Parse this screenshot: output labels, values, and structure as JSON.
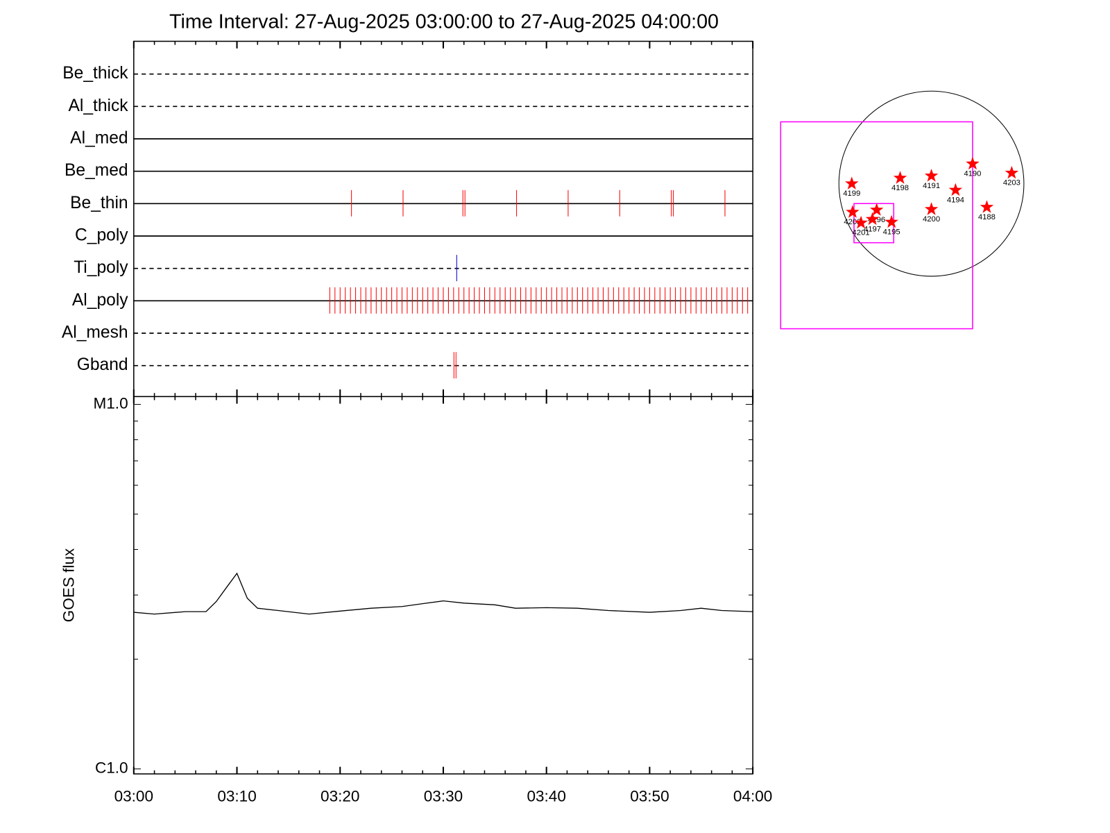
{
  "chart_data": [
    {
      "type": "timeline",
      "title": "Time Interval: 27-Aug-2025 03:00:00 to 27-Aug-2025 04:00:00",
      "xlim": [
        "03:00",
        "04:00"
      ],
      "xticks": [
        "03:00",
        "03:10",
        "03:20",
        "03:30",
        "03:40",
        "03:50",
        "04:00"
      ],
      "xminorticks": [
        "03:02",
        "03:04",
        "03:06",
        "03:08",
        "03:12",
        "03:14",
        "03:16",
        "03:18",
        "03:22",
        "03:24",
        "03:26",
        "03:28",
        "03:32",
        "03:34",
        "03:36",
        "03:38",
        "03:42",
        "03:44",
        "03:46",
        "03:48",
        "03:52",
        "03:54",
        "03:56",
        "03:58"
      ],
      "filters": [
        {
          "name": "Be_thick",
          "line": "dashed",
          "color": "#ff0000",
          "times": []
        },
        {
          "name": "Al_thick",
          "line": "dashed",
          "color": "#ff0000",
          "times": []
        },
        {
          "name": "Al_med",
          "line": "solid",
          "color": "#ff0000",
          "times": []
        },
        {
          "name": "Be_med",
          "line": "solid",
          "color": "#ff0000",
          "times": []
        },
        {
          "name": "Be_thin",
          "line": "solid",
          "color": "#ff0000",
          "times": [
            "03:21:06",
            "03:26:06",
            "03:31:54",
            "03:32:06",
            "03:37:06",
            "03:42:06",
            "03:47:06",
            "03:52:06",
            "03:52:18",
            "03:57:18"
          ]
        },
        {
          "name": "C_poly",
          "line": "solid",
          "color": "#ff0000",
          "times": []
        },
        {
          "name": "Ti_poly",
          "line": "dashed",
          "color": "#0000cc",
          "times": [
            "03:31:18"
          ]
        },
        {
          "name": "Al_poly",
          "line": "solid",
          "color": "#ff0000",
          "times": [
            "03:19:00",
            "03:19:30",
            "03:20:00",
            "03:20:30",
            "03:21:00",
            "03:21:30",
            "03:22:00",
            "03:22:30",
            "03:23:00",
            "03:23:30",
            "03:24:00",
            "03:24:30",
            "03:25:00",
            "03:25:30",
            "03:26:00",
            "03:26:30",
            "03:27:00",
            "03:27:30",
            "03:28:00",
            "03:28:30",
            "03:29:00",
            "03:29:30",
            "03:30:00",
            "03:30:30",
            "03:31:00",
            "03:31:30",
            "03:32:00",
            "03:32:30",
            "03:33:00",
            "03:33:30",
            "03:34:00",
            "03:34:30",
            "03:35:00",
            "03:35:30",
            "03:36:00",
            "03:36:30",
            "03:37:00",
            "03:37:30",
            "03:38:00",
            "03:38:30",
            "03:39:00",
            "03:39:30",
            "03:40:00",
            "03:40:30",
            "03:41:00",
            "03:41:30",
            "03:42:00",
            "03:42:30",
            "03:43:00",
            "03:43:30",
            "03:44:00",
            "03:44:30",
            "03:45:00",
            "03:45:30",
            "03:46:00",
            "03:46:30",
            "03:47:00",
            "03:47:30",
            "03:48:00",
            "03:48:30",
            "03:49:00",
            "03:49:30",
            "03:50:00",
            "03:50:30",
            "03:51:00",
            "03:51:30",
            "03:52:00",
            "03:52:30",
            "03:53:00",
            "03:53:30",
            "03:54:00",
            "03:54:30",
            "03:55:00",
            "03:55:30",
            "03:56:00",
            "03:56:30",
            "03:57:00",
            "03:57:30",
            "03:58:00",
            "03:58:30",
            "03:59:00",
            "03:59:30"
          ]
        },
        {
          "name": "Al_mesh",
          "line": "dashed",
          "color": "#ff0000",
          "times": []
        },
        {
          "name": "Gband",
          "line": "dashed",
          "color": "#ff0000",
          "times": [
            "03:31:02",
            "03:31:14"
          ]
        }
      ]
    },
    {
      "type": "line",
      "ylabel": "GOES flux",
      "log": true,
      "color": "#000000",
      "xlim": [
        "03:00",
        "04:00"
      ],
      "xticks": [
        "03:00",
        "03:10",
        "03:20",
        "03:30",
        "03:40",
        "03:50",
        "04:00"
      ],
      "xminorticks": [
        "03:02",
        "03:04",
        "03:06",
        "03:08",
        "03:12",
        "03:14",
        "03:16",
        "03:18",
        "03:22",
        "03:24",
        "03:26",
        "03:28",
        "03:32",
        "03:34",
        "03:36",
        "03:38",
        "03:42",
        "03:44",
        "03:46",
        "03:48",
        "03:52",
        "03:54",
        "03:56",
        "03:58"
      ],
      "ylim": [
        1e-06,
        1e-05
      ],
      "yticks": [
        {
          "value": 1e-06,
          "label": "C1.0"
        },
        {
          "value": 1e-05,
          "label": "M1.0"
        }
      ],
      "yminorticks": [
        2e-06,
        3e-06,
        4e-06,
        5e-06,
        6e-06,
        7e-06,
        8e-06,
        9e-06
      ],
      "x": [
        "03:00",
        "03:02",
        "03:05",
        "03:07",
        "03:08",
        "03:09",
        "03:10",
        "03:11",
        "03:12",
        "03:14",
        "03:17",
        "03:20",
        "03:23",
        "03:26",
        "03:28",
        "03:30",
        "03:32",
        "03:35",
        "03:37",
        "03:40",
        "03:43",
        "03:46",
        "03:50",
        "03:53",
        "03:55",
        "03:57",
        "04:00"
      ],
      "values": [
        2.69e-06,
        2.66e-06,
        2.7e-06,
        2.7e-06,
        2.88e-06,
        3.15e-06,
        3.44e-06,
        2.94e-06,
        2.76e-06,
        2.72e-06,
        2.66e-06,
        2.71e-06,
        2.76e-06,
        2.79e-06,
        2.84e-06,
        2.89e-06,
        2.85e-06,
        2.82e-06,
        2.76e-06,
        2.77e-06,
        2.76e-06,
        2.72e-06,
        2.69e-06,
        2.72e-06,
        2.76e-06,
        2.72e-06,
        2.7e-06
      ]
    },
    {
      "type": "map",
      "radius": 950,
      "star_color": "#ff0000",
      "box_color": "#ff00ff",
      "regions": [
        {
          "label": "4199",
          "x": -818,
          "y": 0
        },
        {
          "label": "4198",
          "x": -321,
          "y": 58
        },
        {
          "label": "4191",
          "x": 0,
          "y": 80
        },
        {
          "label": "4190",
          "x": 423,
          "y": 204
        },
        {
          "label": "4203",
          "x": 825,
          "y": 110
        },
        {
          "label": "4194",
          "x": 248,
          "y": -66
        },
        {
          "label": "4200",
          "x": 0,
          "y": -263
        },
        {
          "label": "4188",
          "x": 569,
          "y": -241
        },
        {
          "label": "4202",
          "x": -810,
          "y": -292
        },
        {
          "label": "4201",
          "x": -723,
          "y": -402
        },
        {
          "label": "4196",
          "x": -562,
          "y": -270
        },
        {
          "label": "4197",
          "x": -606,
          "y": -365
        },
        {
          "label": "4195",
          "x": -409,
          "y": -394
        }
      ],
      "boxes": [
        {
          "xrange": [
            -1548,
            423
          ],
          "yrange": [
            -1489,
            635
          ]
        },
        {
          "xrange": [
            -795,
            -387
          ],
          "yrange": [
            -606,
            -204
          ]
        }
      ]
    }
  ]
}
